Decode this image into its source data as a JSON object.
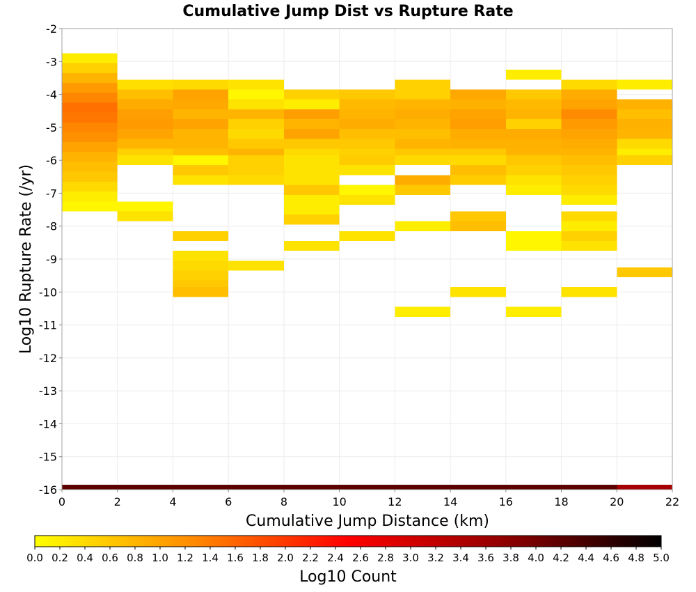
{
  "chart_data": {
    "type": "heatmap",
    "title": "Cumulative Jump Dist vs Rupture Rate",
    "xlabel": "Cumulative Jump Distance (km)",
    "ylabel": "Log10 Rupture Rate (/yr)",
    "xlim": [
      0,
      22
    ],
    "ylim": [
      -16,
      -2
    ],
    "x_ticks": [
      "0",
      "2",
      "4",
      "6",
      "8",
      "10",
      "12",
      "14",
      "16",
      "18",
      "20",
      "22"
    ],
    "y_ticks": [
      "-2",
      "-3",
      "-4",
      "-5",
      "-6",
      "-7",
      "-8",
      "-9",
      "-10",
      "-11",
      "-12",
      "-13",
      "-14",
      "-15",
      "-16"
    ],
    "grid": true,
    "x_bin_width": 2,
    "y_bin_width": 0.3,
    "colorbar": {
      "label": "Log10 Count",
      "min": 0.0,
      "max": 5.0,
      "ticks": [
        "0.0",
        "0.2",
        "0.4",
        "0.6",
        "0.8",
        "1.0",
        "1.2",
        "1.4",
        "1.6",
        "1.8",
        "2.0",
        "2.2",
        "2.4",
        "2.6",
        "2.8",
        "3.0",
        "3.2",
        "3.4",
        "3.6",
        "3.8",
        "4.0",
        "4.2",
        "4.4",
        "4.6",
        "4.8",
        "5.0"
      ],
      "colors": [
        "#ffff00",
        "#ff8c00",
        "#ff0000",
        "#900000",
        "#000000"
      ]
    },
    "bins": [
      {
        "x": 1,
        "cells": [
          [
            -2.9,
            0.2
          ],
          [
            -3.2,
            0.5
          ],
          [
            -3.5,
            0.8
          ],
          [
            -3.8,
            1.1
          ],
          [
            -4.1,
            1.3
          ],
          [
            -4.4,
            1.5
          ],
          [
            -4.7,
            1.45
          ],
          [
            -5.0,
            1.3
          ],
          [
            -5.3,
            1.2
          ],
          [
            -5.6,
            1.0
          ],
          [
            -5.9,
            0.8
          ],
          [
            -6.2,
            0.7
          ],
          [
            -6.5,
            0.6
          ],
          [
            -6.8,
            0.4
          ],
          [
            -7.1,
            0.2
          ],
          [
            -7.4,
            0.1
          ],
          [
            -16.0,
            4.2
          ]
        ]
      },
      {
        "x": 3,
        "cells": [
          [
            -3.7,
            0.35
          ],
          [
            -4.0,
            0.7
          ],
          [
            -4.3,
            0.9
          ],
          [
            -4.6,
            1.05
          ],
          [
            -4.9,
            1.1
          ],
          [
            -5.2,
            1.0
          ],
          [
            -5.5,
            0.8
          ],
          [
            -5.8,
            0.5
          ],
          [
            -6.0,
            0.3
          ],
          [
            -7.4,
            0.1
          ],
          [
            -7.7,
            0.3
          ],
          [
            -16.0,
            4.2
          ]
        ]
      },
      {
        "x": 5,
        "cells": [
          [
            -3.7,
            0.4
          ],
          [
            -4.0,
            1.0
          ],
          [
            -4.3,
            0.95
          ],
          [
            -4.6,
            0.8
          ],
          [
            -4.9,
            1.0
          ],
          [
            -5.2,
            0.8
          ],
          [
            -5.5,
            0.8
          ],
          [
            -5.8,
            0.7
          ],
          [
            -6.0,
            0.1
          ],
          [
            -6.3,
            0.6
          ],
          [
            -6.6,
            0.3
          ],
          [
            -8.3,
            0.5
          ],
          [
            -8.9,
            0.3
          ],
          [
            -9.2,
            0.4
          ],
          [
            -9.5,
            0.5
          ],
          [
            -9.8,
            0.6
          ],
          [
            -10.0,
            0.7
          ],
          [
            -16.0,
            4.2
          ]
        ]
      },
      {
        "x": 7,
        "cells": [
          [
            -3.7,
            0.3
          ],
          [
            -4.0,
            0.1
          ],
          [
            -4.3,
            0.3
          ],
          [
            -4.6,
            0.8
          ],
          [
            -4.9,
            0.5
          ],
          [
            -5.2,
            0.4
          ],
          [
            -5.5,
            0.6
          ],
          [
            -5.8,
            0.8
          ],
          [
            -6.0,
            0.5
          ],
          [
            -6.3,
            0.5
          ],
          [
            -6.6,
            0.4
          ],
          [
            -9.2,
            0.3
          ],
          [
            -16.0,
            4.2
          ]
        ]
      },
      {
        "x": 9,
        "cells": [
          [
            -4.0,
            0.5
          ],
          [
            -4.3,
            0.2
          ],
          [
            -4.6,
            1.05
          ],
          [
            -4.9,
            0.8
          ],
          [
            -5.2,
            1.0
          ],
          [
            -5.5,
            0.6
          ],
          [
            -5.8,
            0.4
          ],
          [
            -6.0,
            0.3
          ],
          [
            -6.3,
            0.3
          ],
          [
            -6.6,
            0.3
          ],
          [
            -6.9,
            0.6
          ],
          [
            -7.2,
            0.2
          ],
          [
            -7.5,
            0.2
          ],
          [
            -7.8,
            0.5
          ],
          [
            -8.6,
            0.3
          ],
          [
            -16.0,
            4.2
          ]
        ]
      },
      {
        "x": 11,
        "cells": [
          [
            -4.0,
            0.6
          ],
          [
            -4.3,
            0.75
          ],
          [
            -4.6,
            0.8
          ],
          [
            -4.9,
            0.9
          ],
          [
            -5.2,
            0.7
          ],
          [
            -5.5,
            0.6
          ],
          [
            -5.8,
            0.5
          ],
          [
            -6.0,
            0.55
          ],
          [
            -6.3,
            0.3
          ],
          [
            -6.9,
            0.1
          ],
          [
            -7.2,
            0.3
          ],
          [
            -8.3,
            0.3
          ],
          [
            -16.0,
            4.2
          ]
        ]
      },
      {
        "x": 13,
        "cells": [
          [
            -3.7,
            0.5
          ],
          [
            -4.0,
            0.5
          ],
          [
            -4.3,
            0.8
          ],
          [
            -4.6,
            0.9
          ],
          [
            -4.9,
            0.8
          ],
          [
            -5.2,
            0.7
          ],
          [
            -5.5,
            0.8
          ],
          [
            -5.8,
            0.6
          ],
          [
            -6.0,
            0.4
          ],
          [
            -6.6,
            0.9
          ],
          [
            -6.9,
            0.6
          ],
          [
            -8.0,
            0.2
          ],
          [
            -10.6,
            0.2
          ],
          [
            -16.0,
            4.2
          ]
        ]
      },
      {
        "x": 15,
        "cells": [
          [
            -4.0,
            0.95
          ],
          [
            -4.3,
            0.85
          ],
          [
            -4.6,
            1.0
          ],
          [
            -4.9,
            1.05
          ],
          [
            -5.2,
            0.9
          ],
          [
            -5.5,
            0.85
          ],
          [
            -5.8,
            0.6
          ],
          [
            -6.0,
            0.4
          ],
          [
            -6.3,
            0.7
          ],
          [
            -6.6,
            0.55
          ],
          [
            -7.7,
            0.6
          ],
          [
            -8.0,
            0.7
          ],
          [
            -10.0,
            0.3
          ],
          [
            -16.0,
            4.2
          ]
        ]
      },
      {
        "x": 17,
        "cells": [
          [
            -3.4,
            0.2
          ],
          [
            -4.0,
            0.6
          ],
          [
            -4.3,
            0.75
          ],
          [
            -4.6,
            0.8
          ],
          [
            -4.9,
            0.5
          ],
          [
            -5.2,
            0.9
          ],
          [
            -5.5,
            0.85
          ],
          [
            -5.8,
            0.8
          ],
          [
            -6.0,
            0.6
          ],
          [
            -6.3,
            0.5
          ],
          [
            -6.6,
            0.3
          ],
          [
            -6.9,
            0.2
          ],
          [
            -8.3,
            0.1
          ],
          [
            -8.6,
            0.1
          ],
          [
            -10.6,
            0.2
          ],
          [
            -16.0,
            4.2
          ]
        ]
      },
      {
        "x": 19,
        "cells": [
          [
            -3.7,
            0.4
          ],
          [
            -4.0,
            0.9
          ],
          [
            -4.3,
            1.0
          ],
          [
            -4.6,
            1.25
          ],
          [
            -4.9,
            1.1
          ],
          [
            -5.2,
            1.0
          ],
          [
            -5.5,
            0.9
          ],
          [
            -5.8,
            0.8
          ],
          [
            -6.0,
            0.7
          ],
          [
            -6.3,
            0.6
          ],
          [
            -6.6,
            0.5
          ],
          [
            -6.9,
            0.4
          ],
          [
            -7.2,
            0.2
          ],
          [
            -7.7,
            0.4
          ],
          [
            -8.0,
            0.2
          ],
          [
            -8.3,
            0.5
          ],
          [
            -8.6,
            0.3
          ],
          [
            -10.0,
            0.3
          ],
          [
            -16.0,
            4.2
          ]
        ]
      },
      {
        "x": 21,
        "cells": [
          [
            -3.7,
            0.2
          ],
          [
            -4.3,
            0.85
          ],
          [
            -4.6,
            0.7
          ],
          [
            -4.9,
            0.85
          ],
          [
            -5.2,
            0.8
          ],
          [
            -5.5,
            0.4
          ],
          [
            -5.8,
            0.2
          ],
          [
            -6.0,
            0.5
          ],
          [
            -9.4,
            0.6
          ],
          [
            -16.0,
            3.5
          ]
        ]
      }
    ]
  }
}
